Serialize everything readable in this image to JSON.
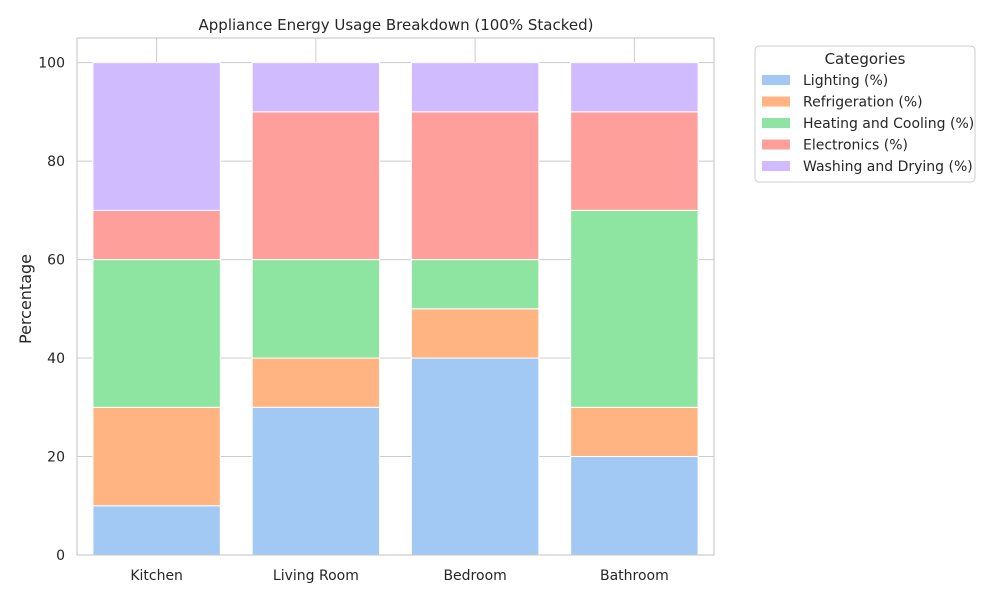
{
  "chart_data": {
    "type": "bar",
    "stacked": true,
    "title": "Appliance Energy Usage Breakdown (100% Stacked)",
    "xlabel": "",
    "ylabel": "Percentage",
    "ylim": [
      0,
      105
    ],
    "yticks": [
      0,
      20,
      40,
      60,
      80,
      100
    ],
    "grid": true,
    "legend_title": "Categories",
    "legend_position": "outside-top-right",
    "categories": [
      "Kitchen",
      "Living Room",
      "Bedroom",
      "Bathroom"
    ],
    "series": [
      {
        "name": "Lighting (%)",
        "color": "#a1c9f4",
        "values": [
          10,
          30,
          40,
          20
        ]
      },
      {
        "name": "Refrigeration (%)",
        "color": "#ffb482",
        "values": [
          20,
          10,
          10,
          10
        ]
      },
      {
        "name": "Heating and Cooling (%)",
        "color": "#8de5a1",
        "values": [
          30,
          20,
          10,
          40
        ]
      },
      {
        "name": "Electronics (%)",
        "color": "#ff9f9b",
        "values": [
          10,
          30,
          30,
          20
        ]
      },
      {
        "name": "Washing and Drying (%)",
        "color": "#d0bbff",
        "values": [
          30,
          10,
          10,
          10
        ]
      }
    ]
  }
}
